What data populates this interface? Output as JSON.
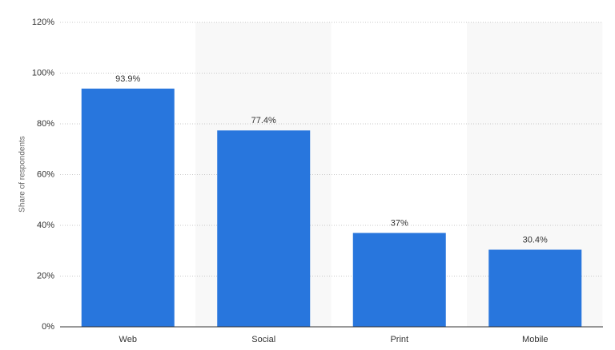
{
  "chart_data": {
    "type": "bar",
    "y_label": "Share of respondents",
    "categories": [
      "Web",
      "Social",
      "Print",
      "Mobile"
    ],
    "values": [
      93.9,
      77.4,
      37,
      30.4
    ],
    "value_labels": [
      "93.9%",
      "77.4%",
      "37%",
      "30.4%"
    ],
    "color": "#2876dd",
    "ylim": [
      0,
      120
    ],
    "yticks": [
      {
        "value": 0,
        "label": "0%"
      },
      {
        "value": 20,
        "label": "20%"
      },
      {
        "value": 40,
        "label": "40%"
      },
      {
        "value": 60,
        "label": "60%"
      },
      {
        "value": 80,
        "label": "80%"
      },
      {
        "value": 100,
        "label": "100%"
      },
      {
        "value": 120,
        "label": "120%"
      }
    ],
    "grid": true
  }
}
